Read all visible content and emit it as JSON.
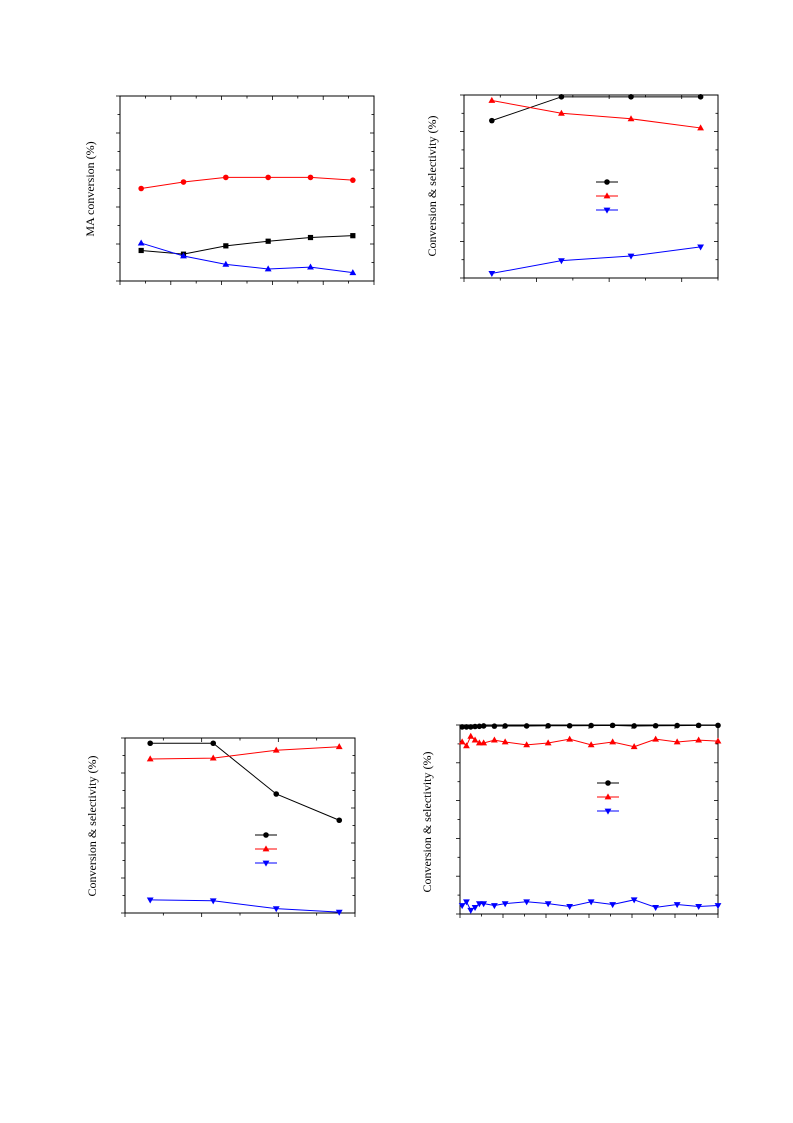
{
  "chart_data": [
    {
      "type": "line",
      "ylabel": "MA conversion (%)",
      "x": [
        1,
        2,
        3,
        4,
        5,
        6
      ],
      "xlim": [
        0.5,
        6.5
      ],
      "ylim": [
        0,
        100
      ],
      "series": [
        {
          "marker": "circle",
          "color": "#ff0000",
          "values": [
            50,
            53.5,
            56,
            56,
            56,
            54.5
          ]
        },
        {
          "marker": "square",
          "color": "#000000",
          "values": [
            16.5,
            14.5,
            19,
            21.5,
            23.5,
            24.5
          ]
        },
        {
          "marker": "triangle-up",
          "color": "#0000ff",
          "values": [
            20.5,
            13.5,
            9,
            6.5,
            7.5,
            4.5
          ]
        }
      ],
      "legend": "none",
      "grid": false
    },
    {
      "type": "line",
      "ylabel": "Conversion & selectivity (%)",
      "x": [
        1,
        2,
        3,
        4
      ],
      "xlim": [
        0.6,
        4.25
      ],
      "ylim": [
        0,
        100
      ],
      "series": [
        {
          "marker": "circle",
          "color": "#000000",
          "values": [
            86,
            99,
            99,
            99
          ]
        },
        {
          "marker": "triangle-up",
          "color": "#ff0000",
          "values": [
            97,
            90,
            87,
            82
          ]
        },
        {
          "marker": "triangle-down",
          "color": "#0000ff",
          "values": [
            2.5,
            9.5,
            12,
            17
          ]
        }
      ],
      "legend": "center-right",
      "grid": false
    },
    {
      "type": "line",
      "ylabel": "Conversion & selectivity (%)",
      "x": [
        1,
        2,
        3,
        4
      ],
      "xlim": [
        0.6,
        4.25
      ],
      "ylim": [
        0,
        100
      ],
      "series": [
        {
          "marker": "circle",
          "color": "#000000",
          "values": [
            97,
            97,
            68,
            53
          ]
        },
        {
          "marker": "triangle-up",
          "color": "#ff0000",
          "values": [
            88,
            88.5,
            93,
            95
          ]
        },
        {
          "marker": "triangle-down",
          "color": "#0000ff",
          "values": [
            7.5,
            7,
            2.5,
            0.5
          ]
        }
      ],
      "legend": "center-right",
      "grid": false
    },
    {
      "type": "line",
      "ylabel": "Conversion & selectivity (%)",
      "xlim": [
        0,
        24
      ],
      "ylim": [
        0,
        100
      ],
      "series": [
        {
          "marker": "circle",
          "color": "#000000",
          "x": [
            0.2,
            0.6,
            1.0,
            1.4,
            1.8,
            2.2,
            3.2,
            4.2,
            6.2,
            8.2,
            10.2,
            12.2,
            14.2,
            16.2,
            18.2,
            20.2,
            22.2,
            24.0
          ],
          "values": [
            99,
            99,
            99,
            99.2,
            99.3,
            99.5,
            99.4,
            99.5,
            99.5,
            99.6,
            99.6,
            99.7,
            99.8,
            99.5,
            99.6,
            99.7,
            99.8,
            99.8
          ]
        },
        {
          "marker": "triangle-up",
          "color": "#ff0000",
          "x": [
            0.2,
            0.6,
            1.0,
            1.4,
            1.8,
            2.2,
            3.2,
            4.2,
            6.2,
            8.2,
            10.2,
            12.2,
            14.2,
            16.2,
            18.2,
            20.2,
            22.2,
            24.0
          ],
          "values": [
            91,
            89,
            94,
            92,
            90.5,
            90.5,
            92,
            91,
            89.5,
            90.5,
            92.5,
            89.5,
            91,
            88.5,
            92.5,
            91,
            92,
            91.5
          ]
        },
        {
          "marker": "triangle-down",
          "color": "#0000ff",
          "x": [
            0.2,
            0.6,
            1.0,
            1.4,
            1.8,
            2.2,
            3.2,
            4.2,
            6.2,
            8.2,
            10.2,
            12.2,
            14.2,
            16.2,
            18.2,
            20.2,
            22.2,
            24.0
          ],
          "values": [
            4.5,
            6.5,
            2,
            3.5,
            5.5,
            5.5,
            4.5,
            5.5,
            6.5,
            5.5,
            4,
            6.5,
            5,
            7.5,
            3.5,
            5,
            4,
            4.5
          ]
        }
      ],
      "legend": "center-right",
      "grid": false
    }
  ]
}
